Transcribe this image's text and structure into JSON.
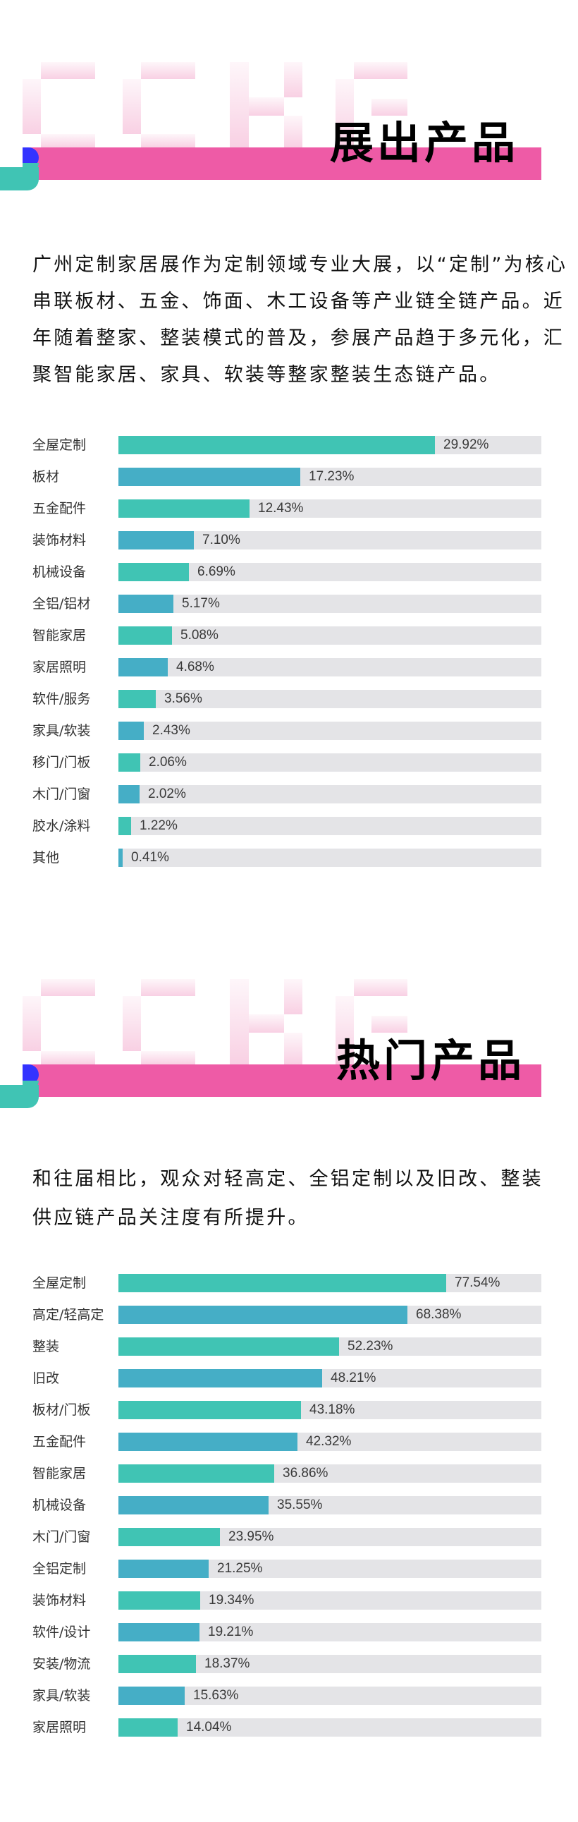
{
  "section1": {
    "title": "展出产品",
    "watermark": "CCKG",
    "paragraph_lines": [
      "广州定制家居展作为定制领域专业大展，以“定制”为核心",
      "串联板材、五金、饰面、木工设备等产业链全链产品。近",
      "年随着整家、整装模式的普及，参展产品趋于多元化，汇",
      "聚智能家居、家具、软装等整家整装生态链产品。"
    ]
  },
  "section2": {
    "title": "热门产品",
    "watermark": "CCKG",
    "paragraph_lines": [
      "和往届相比，观众对轻高定、全铝定制以及旧改、整装",
      "供应链产品关注度有所提升。"
    ]
  },
  "colors": {
    "teal": "#40C4B4",
    "blue": "#45AEC6",
    "track": "#E4E4E7",
    "pink": "#EE5BA6",
    "accent_blue": "#3333FF"
  },
  "chart_data": [
    {
      "type": "bar",
      "orientation": "horizontal",
      "title": "展出产品",
      "categories": [
        "全屋定制",
        "板材",
        "五金配件",
        "装饰材料",
        "机械设备",
        "全铝/铝材",
        "智能家居",
        "家居照明",
        "软件/服务",
        "家具/软装",
        "移门/门板",
        "木门/门窗",
        "胶水/涂料",
        "其他"
      ],
      "values": [
        29.92,
        17.23,
        12.43,
        7.1,
        6.69,
        5.17,
        5.08,
        4.68,
        3.56,
        2.43,
        2.06,
        2.02,
        1.22,
        0.41
      ],
      "value_labels": [
        "29.92%",
        "17.23%",
        "12.43%",
        "7.10%",
        "6.69%",
        "5.17%",
        "5.08%",
        "4.68%",
        "3.56%",
        "2.43%",
        "2.06%",
        "2.02%",
        "1.22%",
        "0.41%"
      ],
      "unit": "%",
      "xlim": [
        0,
        40
      ],
      "grid": false,
      "legend": false,
      "bar_colors": "alternating teal/blue"
    },
    {
      "type": "bar",
      "orientation": "horizontal",
      "title": "热门产品",
      "categories": [
        "全屋定制",
        "高定/轻高定",
        "整装",
        "旧改",
        "板材/门板",
        "五金配件",
        "智能家居",
        "机械设备",
        "木门/门窗",
        "全铝定制",
        "装饰材料",
        "软件/设计",
        "安装/物流",
        "家具/软装",
        "家居照明"
      ],
      "values": [
        77.54,
        68.38,
        52.23,
        48.21,
        43.18,
        42.32,
        36.86,
        35.55,
        23.95,
        21.25,
        19.34,
        19.21,
        18.37,
        15.63,
        14.04
      ],
      "value_labels": [
        "77.54%",
        "68.38%",
        "52.23%",
        "48.21%",
        "43.18%",
        "42.32%",
        "36.86%",
        "35.55%",
        "23.95%",
        "21.25%",
        "19.34%",
        "19.21%",
        "18.37%",
        "15.63%",
        "14.04%"
      ],
      "unit": "%",
      "xlim": [
        0,
        100
      ],
      "grid": false,
      "legend": false,
      "bar_colors": "alternating teal/blue"
    }
  ]
}
